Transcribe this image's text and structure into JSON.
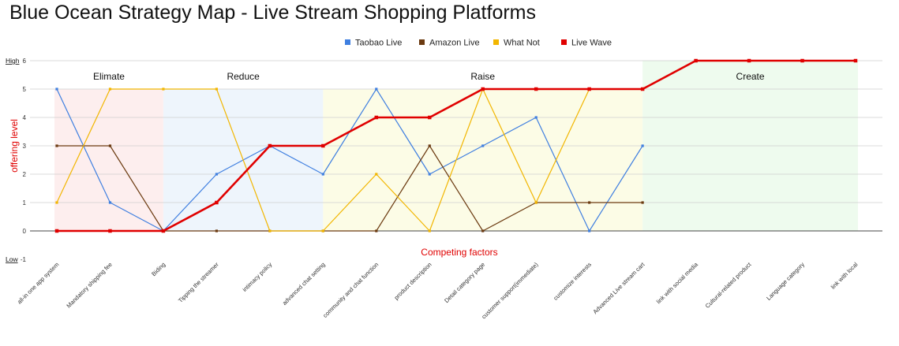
{
  "chart_data": {
    "type": "line",
    "title": "Blue Ocean  Strategy Map - Live Stream Shopping Platforms",
    "xlabel": "Competing factors",
    "ylabel": "offering level",
    "ylim": [
      -1,
      6
    ],
    "yticks": [
      -1,
      0,
      1,
      2,
      3,
      4,
      5,
      6
    ],
    "y_high_label": "High",
    "y_low_label": "Low",
    "grid": true,
    "legend_position": "top-center",
    "categories": [
      "all-in one app system",
      "Mandatory shipping fee",
      "Biding",
      "Tipping the streamer",
      "intimacy policy",
      "advanced chat setting",
      "community and chat function",
      "product description",
      "Detail category page",
      "customer support(immediate)",
      "customize interests",
      "Advanced Live stream cart",
      "link with social media",
      "Cultural-related product",
      "Language category",
      "link with local"
    ],
    "series": [
      {
        "name": "Taobao Live",
        "color": "#3f7fe0",
        "width": 1.2,
        "values": [
          5,
          1,
          0,
          2,
          3,
          2,
          5,
          2,
          3,
          4,
          0,
          3,
          null,
          null,
          null,
          null
        ]
      },
      {
        "name": "Amazon Live",
        "color": "#6b3a10",
        "width": 1.2,
        "values": [
          3,
          3,
          0,
          0,
          0,
          0,
          0,
          3,
          0,
          1,
          1,
          1,
          null,
          null,
          null,
          null
        ]
      },
      {
        "name": "What Not",
        "color": "#f2b600",
        "width": 1.2,
        "values": [
          1,
          5,
          5,
          5,
          0,
          0,
          2,
          0,
          5,
          1,
          5,
          5,
          null,
          null,
          null,
          null
        ]
      },
      {
        "name": "Live Wave",
        "color": "#e00000",
        "width": 2.6,
        "values": [
          0,
          0,
          0,
          1,
          3,
          3,
          4,
          4,
          5,
          5,
          5,
          5,
          6,
          6,
          6,
          6
        ]
      }
    ],
    "zones": [
      {
        "label": "Elimate",
        "color": "#fdeeee",
        "from": 0,
        "to": 2
      },
      {
        "label": "Reduce",
        "color": "#eef5fc",
        "from": 2,
        "to": 5
      },
      {
        "label": "Raise",
        "color": "#fcfce6",
        "from": 5,
        "to": 11
      },
      {
        "label": "Create",
        "color": "#eefbee",
        "from": 11,
        "to": 15
      }
    ]
  }
}
